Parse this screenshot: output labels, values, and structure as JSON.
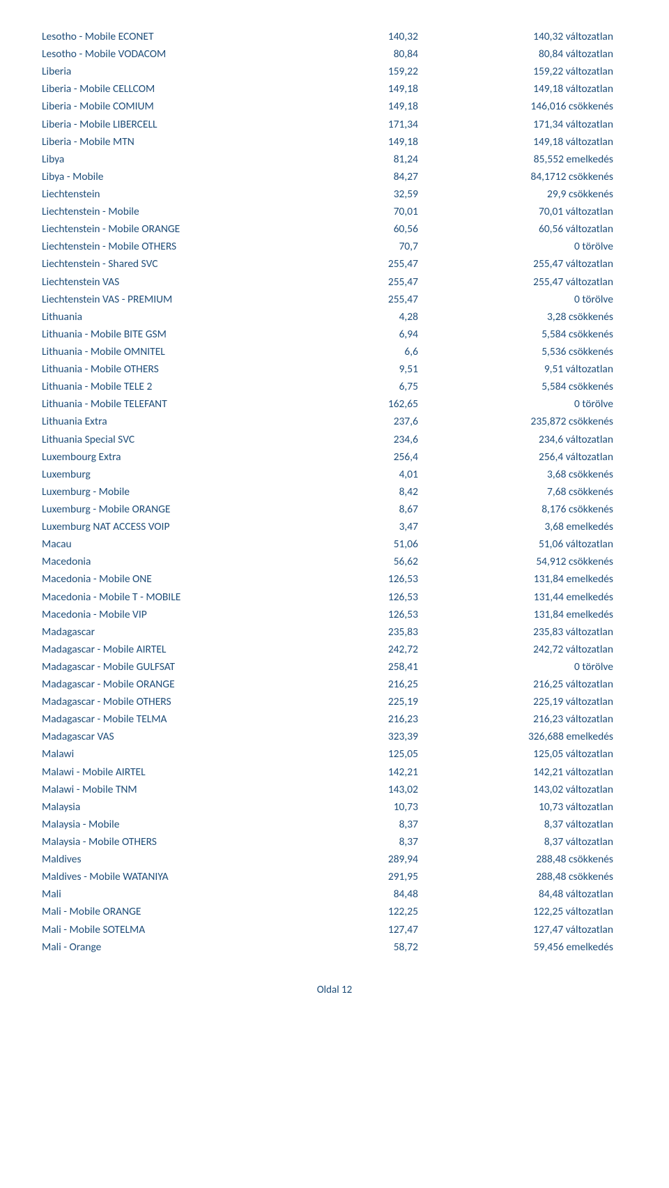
{
  "text_color": "#1f4e79",
  "background_color": "#ffffff",
  "font_family": "Calibri",
  "font_size_pt": 11,
  "columns": [
    "name",
    "value1",
    "value2_with_status"
  ],
  "rows": [
    {
      "name": "Lesotho - Mobile ECONET",
      "v1": "140,32",
      "v2": "140,32 változatlan"
    },
    {
      "name": "Lesotho - Mobile VODACOM",
      "v1": "80,84",
      "v2": "80,84 változatlan"
    },
    {
      "name": "Liberia",
      "v1": "159,22",
      "v2": "159,22 változatlan"
    },
    {
      "name": "Liberia - Mobile CELLCOM",
      "v1": "149,18",
      "v2": "149,18 változatlan"
    },
    {
      "name": "Liberia - Mobile COMIUM",
      "v1": "149,18",
      "v2": "146,016 csökkenés"
    },
    {
      "name": "Liberia - Mobile LIBERCELL",
      "v1": "171,34",
      "v2": "171,34 változatlan"
    },
    {
      "name": "Liberia - Mobile MTN",
      "v1": "149,18",
      "v2": "149,18 változatlan"
    },
    {
      "name": "Libya",
      "v1": "81,24",
      "v2": "85,552 emelkedés"
    },
    {
      "name": "Libya - Mobile",
      "v1": "84,27",
      "v2": "84,1712 csökkenés"
    },
    {
      "name": "Liechtenstein",
      "v1": "32,59",
      "v2": "29,9 csökkenés"
    },
    {
      "name": "Liechtenstein - Mobile",
      "v1": "70,01",
      "v2": "70,01 változatlan"
    },
    {
      "name": "Liechtenstein - Mobile ORANGE",
      "v1": "60,56",
      "v2": "60,56 változatlan"
    },
    {
      "name": "Liechtenstein - Mobile OTHERS",
      "v1": "70,7",
      "v2": "0 törölve"
    },
    {
      "name": "Liechtenstein - Shared SVC",
      "v1": "255,47",
      "v2": "255,47 változatlan"
    },
    {
      "name": "Liechtenstein VAS",
      "v1": "255,47",
      "v2": "255,47 változatlan"
    },
    {
      "name": "Liechtenstein VAS - PREMIUM",
      "v1": "255,47",
      "v2": "0 törölve"
    },
    {
      "name": "Lithuania",
      "v1": "4,28",
      "v2": "3,28 csökkenés"
    },
    {
      "name": "Lithuania - Mobile BITE GSM",
      "v1": "6,94",
      "v2": "5,584 csökkenés"
    },
    {
      "name": "Lithuania - Mobile OMNITEL",
      "v1": "6,6",
      "v2": "5,536 csökkenés"
    },
    {
      "name": "Lithuania - Mobile OTHERS",
      "v1": "9,51",
      "v2": "9,51 változatlan"
    },
    {
      "name": "Lithuania - Mobile TELE 2",
      "v1": "6,75",
      "v2": "5,584 csökkenés"
    },
    {
      "name": "Lithuania - Mobile TELEFANT",
      "v1": "162,65",
      "v2": "0 törölve"
    },
    {
      "name": "Lithuania Extra",
      "v1": "237,6",
      "v2": "235,872 csökkenés"
    },
    {
      "name": "Lithuania Special SVC",
      "v1": "234,6",
      "v2": "234,6 változatlan"
    },
    {
      "name": "Luxembourg Extra",
      "v1": "256,4",
      "v2": "256,4 változatlan"
    },
    {
      "name": "Luxemburg",
      "v1": "4,01",
      "v2": "3,68 csökkenés"
    },
    {
      "name": "Luxemburg - Mobile",
      "v1": "8,42",
      "v2": "7,68 csökkenés"
    },
    {
      "name": "Luxemburg - Mobile ORANGE",
      "v1": "8,67",
      "v2": "8,176 csökkenés"
    },
    {
      "name": "Luxemburg NAT ACCESS VOIP",
      "v1": "3,47",
      "v2": "3,68 emelkedés"
    },
    {
      "name": "Macau",
      "v1": "51,06",
      "v2": "51,06 változatlan"
    },
    {
      "name": "Macedonia",
      "v1": "56,62",
      "v2": "54,912 csökkenés"
    },
    {
      "name": "Macedonia - Mobile ONE",
      "v1": "126,53",
      "v2": "131,84 emelkedés"
    },
    {
      "name": "Macedonia - Mobile T - MOBILE",
      "v1": "126,53",
      "v2": "131,44 emelkedés"
    },
    {
      "name": "Macedonia - Mobile VIP",
      "v1": "126,53",
      "v2": "131,84 emelkedés"
    },
    {
      "name": "Madagascar",
      "v1": "235,83",
      "v2": "235,83 változatlan"
    },
    {
      "name": "Madagascar - Mobile AIRTEL",
      "v1": "242,72",
      "v2": "242,72 változatlan"
    },
    {
      "name": "Madagascar - Mobile GULFSAT",
      "v1": "258,41",
      "v2": "0 törölve"
    },
    {
      "name": "Madagascar - Mobile ORANGE",
      "v1": "216,25",
      "v2": "216,25 változatlan"
    },
    {
      "name": "Madagascar - Mobile OTHERS",
      "v1": "225,19",
      "v2": "225,19 változatlan"
    },
    {
      "name": "Madagascar - Mobile TELMA",
      "v1": "216,23",
      "v2": "216,23 változatlan"
    },
    {
      "name": "Madagascar VAS",
      "v1": "323,39",
      "v2": "326,688 emelkedés"
    },
    {
      "name": "Malawi",
      "v1": "125,05",
      "v2": "125,05 változatlan"
    },
    {
      "name": "Malawi - Mobile AIRTEL",
      "v1": "142,21",
      "v2": "142,21 változatlan"
    },
    {
      "name": "Malawi - Mobile TNM",
      "v1": "143,02",
      "v2": "143,02 változatlan"
    },
    {
      "name": "Malaysia",
      "v1": "10,73",
      "v2": "10,73 változatlan"
    },
    {
      "name": "Malaysia - Mobile",
      "v1": "8,37",
      "v2": "8,37 változatlan"
    },
    {
      "name": "Malaysia - Mobile OTHERS",
      "v1": "8,37",
      "v2": "8,37 változatlan"
    },
    {
      "name": "Maldives",
      "v1": "289,94",
      "v2": "288,48 csökkenés"
    },
    {
      "name": "Maldives - Mobile WATANIYA",
      "v1": "291,95",
      "v2": "288,48 csökkenés"
    },
    {
      "name": "Mali",
      "v1": "84,48",
      "v2": "84,48 változatlan"
    },
    {
      "name": "Mali - Mobile ORANGE",
      "v1": "122,25",
      "v2": "122,25 változatlan"
    },
    {
      "name": "Mali - Mobile SOTELMA",
      "v1": "127,47",
      "v2": "127,47 változatlan"
    },
    {
      "name": "Mali - Orange",
      "v1": "58,72",
      "v2": "59,456 emelkedés"
    }
  ],
  "footer": "Oldal 12"
}
